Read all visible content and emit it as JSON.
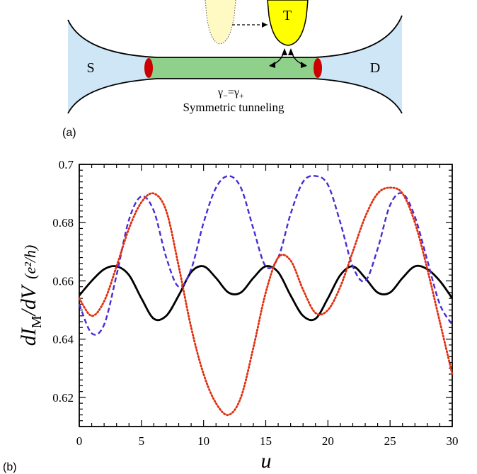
{
  "diagram": {
    "source_label": "S",
    "drain_label": "D",
    "tip_label": "T",
    "gamma_minus": "γ",
    "gamma_minus_sub": "−",
    "equals": "=",
    "gamma_plus": "γ",
    "gamma_plus_sub": "+",
    "caption": "Symmetric tunneling",
    "panel_label": "(a)",
    "colors": {
      "lead": "#cfe6f7",
      "wire": "#8fd18a",
      "majorana": "#cc0000",
      "tip": "#ffff00",
      "tip_ghost": "#fff9c4"
    }
  },
  "plot": {
    "panel_label": "(b)"
  },
  "chart_data": {
    "type": "line",
    "xlabel": "u",
    "ylabel_main": "dI",
    "ylabel_sub": "M",
    "ylabel_rest": "/dV",
    "ylabel_units": "(e²/h)",
    "xlim": [
      0,
      30
    ],
    "ylim": [
      0.61,
      0.7
    ],
    "xticks": [
      0,
      5,
      10,
      15,
      20,
      25,
      30
    ],
    "yticks": [
      0.62,
      0.64,
      0.66,
      0.68,
      0.7
    ],
    "ytick_labels": [
      "0.62",
      "0.64",
      "0.66",
      "0.68",
      "0.7"
    ],
    "series": [
      {
        "style": "solid",
        "color": "#000000",
        "x": [
          0,
          1,
          2,
          3,
          4,
          5,
          6,
          7,
          8,
          9,
          10,
          11,
          12,
          13,
          14,
          15,
          16,
          17,
          18,
          19,
          20,
          21,
          22,
          23,
          24,
          25,
          26,
          27,
          28,
          29,
          30
        ],
        "y": [
          0.655,
          0.66,
          0.664,
          0.665,
          0.662,
          0.654,
          0.647,
          0.648,
          0.655,
          0.663,
          0.665,
          0.661,
          0.656,
          0.656,
          0.661,
          0.665,
          0.663,
          0.655,
          0.648,
          0.647,
          0.654,
          0.662,
          0.665,
          0.661,
          0.656,
          0.656,
          0.661,
          0.665,
          0.664,
          0.66,
          0.654
        ]
      },
      {
        "style": "dashed",
        "color": "#4b2bd4",
        "x": [
          0,
          1,
          2,
          3,
          4,
          5,
          6,
          7,
          8,
          9,
          10,
          11,
          12,
          13,
          14,
          15,
          16,
          17,
          18,
          19,
          20,
          21,
          22,
          23,
          24,
          25,
          26,
          27,
          28,
          29,
          30
        ],
        "y": [
          0.652,
          0.642,
          0.645,
          0.662,
          0.681,
          0.689,
          0.684,
          0.668,
          0.658,
          0.664,
          0.68,
          0.692,
          0.696,
          0.692,
          0.678,
          0.665,
          0.668,
          0.683,
          0.694,
          0.696,
          0.693,
          0.68,
          0.665,
          0.66,
          0.671,
          0.686,
          0.69,
          0.682,
          0.667,
          0.652,
          0.645
        ]
      },
      {
        "style": "dotted",
        "color": "#e03010",
        "x": [
          0,
          1,
          2,
          3,
          4,
          5,
          6,
          7,
          8,
          9,
          10,
          11,
          12,
          13,
          14,
          15,
          16,
          17,
          18,
          19,
          20,
          21,
          22,
          23,
          24,
          25,
          26,
          27,
          28,
          29,
          30
        ],
        "y": [
          0.654,
          0.648,
          0.653,
          0.665,
          0.678,
          0.687,
          0.69,
          0.684,
          0.665,
          0.644,
          0.628,
          0.618,
          0.614,
          0.62,
          0.637,
          0.656,
          0.668,
          0.667,
          0.657,
          0.649,
          0.65,
          0.658,
          0.67,
          0.682,
          0.69,
          0.692,
          0.69,
          0.68,
          0.664,
          0.646,
          0.628
        ]
      }
    ]
  }
}
